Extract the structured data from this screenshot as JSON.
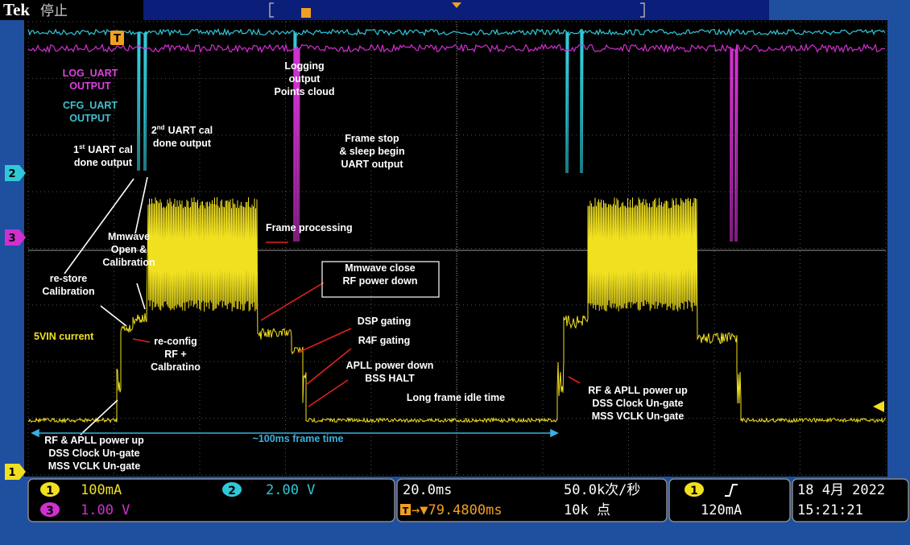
{
  "header": {
    "brand": "Tek",
    "state": "停止"
  },
  "markers": {
    "trigger": "T",
    "ch2": "2",
    "ch3": "3",
    "ch1": "1"
  },
  "annotations": [
    {
      "lines": [
        "LOG_UART",
        "OUTPUT"
      ]
    },
    {
      "lines": [
        "CFG_UART",
        "OUTPUT"
      ]
    },
    {
      "lines": [
        {
          "number": "1",
          "suffix": "st",
          "text": "UART cal"
        },
        "done output"
      ]
    },
    {
      "lines": [
        {
          "number": "2",
          "suffix": "nd",
          "text": "UART cal"
        },
        "done output"
      ]
    },
    {
      "lines": [
        "Logging",
        "output",
        "Points cloud"
      ]
    },
    {
      "lines": [
        "Frame stop",
        "& sleep begin",
        "UART output"
      ]
    },
    {
      "lines": [
        "Frame processing"
      ]
    },
    {
      "lines": [
        "Mmwave",
        "Open &",
        "Calibration"
      ]
    },
    {
      "lines": [
        "re-store",
        "Calibration"
      ]
    },
    {
      "lines": [
        "Mmwave close",
        "RF power down"
      ]
    },
    {
      "lines": [
        "DSP gating"
      ]
    },
    {
      "lines": [
        "R4F gating"
      ]
    },
    {
      "lines": [
        "APLL power down",
        "BSS HALT"
      ]
    },
    {
      "lines": [
        "Long frame idle time"
      ]
    },
    {
      "lines": [
        "5VIN current"
      ]
    },
    {
      "lines": [
        "re-config",
        "RF +",
        "Calbratino"
      ]
    },
    {
      "lines": [
        "RF & APLL power up",
        "DSS Clock Un-gate",
        "MSS VCLK Un-gate"
      ]
    },
    {
      "lines": [
        "RF & APLL power up",
        "DSS Clock Un-gate",
        "MSS VCLK Un-gate"
      ]
    },
    {
      "lines": [
        "~100ms frame time"
      ]
    }
  ],
  "status": {
    "ch1_scale": "100mA",
    "ch2_scale": "2.00 V",
    "ch3_scale": "1.00 V",
    "timebase": "20.0ms",
    "sample_rate": "50.0k次/秒",
    "trigger_position": "→▼79.4800ms",
    "record_length": "10k 点",
    "trigger_source": "1",
    "trigger_level": "120mA",
    "date": "18 4月 2022",
    "time": "15:21:21"
  }
}
